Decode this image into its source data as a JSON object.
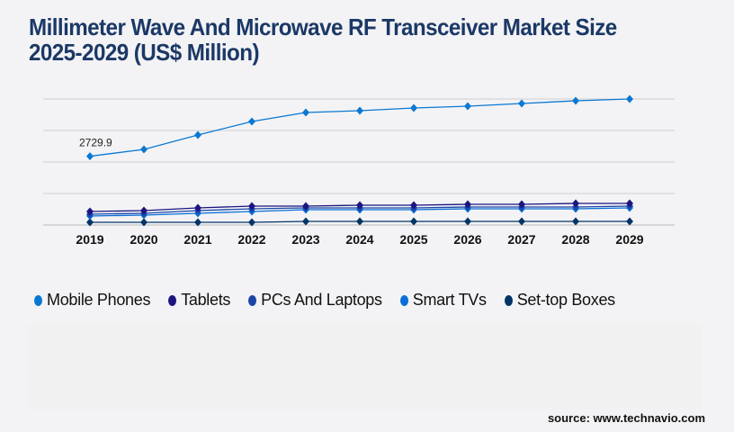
{
  "chart_data": {
    "type": "line",
    "title": "Millimeter Wave And Microwave RF Transceiver Market Size 2025-2029 (US$ Million)",
    "xlabel": "",
    "ylabel": "",
    "categories": [
      "2019",
      "2020",
      "2021",
      "2022",
      "2023",
      "2024",
      "2025",
      "2026",
      "2027",
      "2028",
      "2029"
    ],
    "ylim": [
      0,
      5000
    ],
    "y_gridlines": [
      0,
      1250,
      2500,
      3750,
      5000
    ],
    "grid": true,
    "y_tick_labels_shown": false,
    "legend_placement": "bottom",
    "annotations": [
      {
        "series": "Mobile Phones",
        "x": "2019",
        "label": "2729.9"
      }
    ],
    "series": [
      {
        "name": "Mobile Phones",
        "color": "#0a78d2",
        "values": [
          2729.9,
          3000,
          3571,
          4107,
          4464,
          4536,
          4643,
          4714,
          4821,
          4929,
          5000
        ]
      },
      {
        "name": "Tablets",
        "color": "#1c1580",
        "values": [
          536,
          571,
          679,
          750,
          750,
          786,
          786,
          821,
          821,
          857,
          857
        ]
      },
      {
        "name": "PCs And Laptops",
        "color": "#1a46a8",
        "values": [
          429,
          464,
          571,
          643,
          679,
          679,
          679,
          714,
          714,
          714,
          750
        ]
      },
      {
        "name": "Smart TVs",
        "color": "#0a6fd6",
        "values": [
          357,
          393,
          464,
          536,
          607,
          607,
          607,
          643,
          643,
          643,
          679
        ]
      },
      {
        "name": "Set-top Boxes",
        "color": "#033466",
        "values": [
          107,
          107,
          107,
          107,
          143,
          143,
          143,
          143,
          143,
          143,
          143
        ]
      }
    ]
  },
  "source": "source: www.technavio.com"
}
